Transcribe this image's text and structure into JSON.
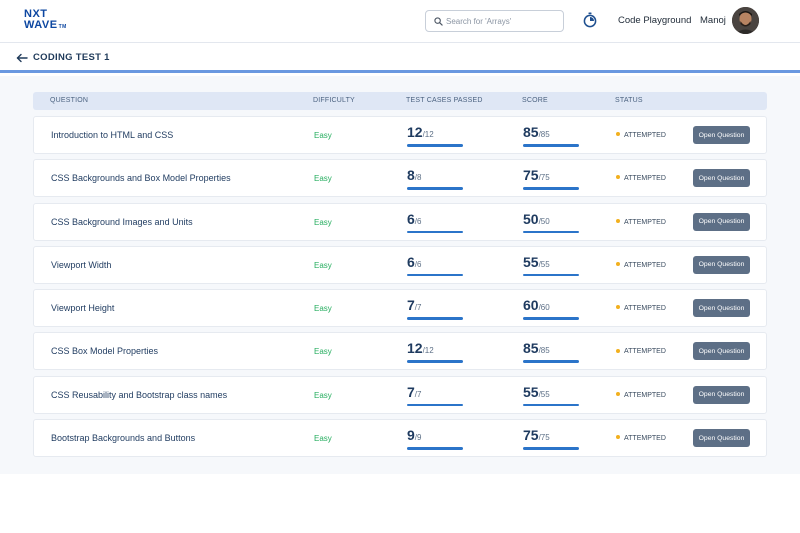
{
  "brand": {
    "line1": "NXT",
    "line2": "WAVE",
    "tm": "TM"
  },
  "search": {
    "placeholder": "Search for 'Arrays'"
  },
  "nav": {
    "playground": "Code Playground",
    "username": "Manoj"
  },
  "page": {
    "title": "CODING TEST 1"
  },
  "table": {
    "headers": {
      "question": "QUESTION",
      "difficulty": "DIFFICULTY",
      "test_cases": "TEST CASES PASSED",
      "score": "SCORE",
      "status": "STATUS"
    },
    "button_label": "Open Question",
    "rows": [
      {
        "question": "Introduction to HTML and CSS",
        "difficulty": "Easy",
        "tc_passed": "12",
        "tc_total": "/12",
        "tc_fraction": 1,
        "score": "85",
        "score_total": "/85",
        "score_fraction": 1,
        "status": "ATTEMPTED"
      },
      {
        "question": "CSS Backgrounds and Box Model Properties",
        "difficulty": "Easy",
        "tc_passed": "8",
        "tc_total": "/8",
        "tc_fraction": 1,
        "score": "75",
        "score_total": "/75",
        "score_fraction": 1,
        "status": "ATTEMPTED"
      },
      {
        "question": "CSS Background Images and Units",
        "difficulty": "Easy",
        "tc_passed": "6",
        "tc_total": "/6",
        "tc_fraction": 1,
        "score": "50",
        "score_total": "/50",
        "score_fraction": 1,
        "status": "ATTEMPTED"
      },
      {
        "question": "Viewport Width",
        "difficulty": "Easy",
        "tc_passed": "6",
        "tc_total": "/6",
        "tc_fraction": 1,
        "score": "55",
        "score_total": "/55",
        "score_fraction": 1,
        "status": "ATTEMPTED"
      },
      {
        "question": "Viewport Height",
        "difficulty": "Easy",
        "tc_passed": "7",
        "tc_total": "/7",
        "tc_fraction": 1,
        "score": "60",
        "score_total": "/60",
        "score_fraction": 1,
        "status": "ATTEMPTED"
      },
      {
        "question": "CSS Box Model Properties",
        "difficulty": "Easy",
        "tc_passed": "12",
        "tc_total": "/12",
        "tc_fraction": 1,
        "score": "85",
        "score_total": "/85",
        "score_fraction": 1,
        "status": "ATTEMPTED"
      },
      {
        "question": "CSS Reusability and Bootstrap class names",
        "difficulty": "Easy",
        "tc_passed": "7",
        "tc_total": "/7",
        "tc_fraction": 1,
        "score": "55",
        "score_total": "/55",
        "score_fraction": 1,
        "status": "ATTEMPTED"
      },
      {
        "question": "Bootstrap Backgrounds and Buttons",
        "difficulty": "Easy",
        "tc_passed": "9",
        "tc_total": "/9",
        "tc_fraction": 1,
        "score": "75",
        "score_total": "/75",
        "score_fraction": 1,
        "status": "ATTEMPTED"
      }
    ]
  },
  "colors": {
    "brand": "#0d47a1",
    "easy": "#27ae60",
    "progress": "#2b74c9",
    "attempted_dot": "#f2b01e",
    "button": "#5d6f86"
  },
  "icons": {
    "search": "search-icon",
    "timer": "stopwatch-icon",
    "back": "arrow-left-icon"
  }
}
